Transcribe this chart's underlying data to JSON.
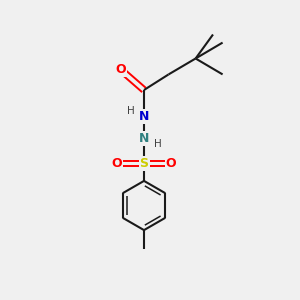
{
  "background_color": "#f0f0f0",
  "bond_color": "#1a1a1a",
  "atom_colors": {
    "O": "#ff0000",
    "N_blue": "#0000cd",
    "N_teal": "#2f8080",
    "S": "#cccc00",
    "C": "#1a1a1a",
    "H": "#404040"
  },
  "figsize": [
    3.0,
    3.0
  ],
  "dpi": 100,
  "xlim": [
    0,
    10
  ],
  "ylim": [
    0,
    10
  ],
  "lw": 1.5,
  "lw_inner": 1.1
}
